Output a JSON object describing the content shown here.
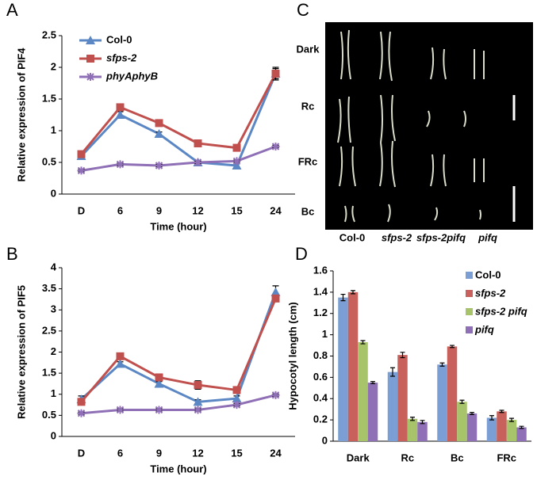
{
  "chart_data": [
    {
      "type": "line",
      "panel": "A",
      "y_label": "Relative expression of PIF4",
      "x_label": "Time (hour)",
      "categories": [
        "D",
        "6",
        "9",
        "12",
        "15",
        "24"
      ],
      "ylim": [
        0,
        2.5
      ],
      "yticks": [
        0,
        0.5,
        1,
        1.5,
        2,
        2.5
      ],
      "legend": "upper left",
      "series": [
        {
          "name": "Col-0",
          "color": "#5b87c5",
          "marker": "triangle",
          "values": [
            0.6,
            1.25,
            0.95,
            0.5,
            0.45,
            1.9
          ],
          "errors": [
            0.04,
            0.05,
            0.03,
            0.03,
            0.03,
            0.08
          ]
        },
        {
          "name": "sfps-2",
          "color": "#c0504d",
          "marker": "square",
          "values": [
            0.63,
            1.37,
            1.12,
            0.8,
            0.73,
            1.9
          ],
          "errors": [
            0.05,
            0.04,
            0.04,
            0.04,
            0.03,
            0.1
          ]
        },
        {
          "name": "phyAphyB",
          "color": "#8f6fb5",
          "marker": "star",
          "values": [
            0.37,
            0.47,
            0.45,
            0.5,
            0.52,
            0.75
          ],
          "errors": [
            0.02,
            0.02,
            0.02,
            0.02,
            0.02,
            0.02
          ]
        }
      ]
    },
    {
      "type": "line",
      "panel": "B",
      "y_label": "Relative expression of PIF5",
      "x_label": "Time (hour)",
      "categories": [
        "D",
        "6",
        "9",
        "12",
        "15",
        "24"
      ],
      "ylim": [
        0,
        4
      ],
      "yticks": [
        0,
        0.5,
        1,
        1.5,
        2,
        2.5,
        3,
        3.5,
        4
      ],
      "series": [
        {
          "name": "Col-0",
          "color": "#5b87c5",
          "marker": "triangle",
          "values": [
            0.88,
            1.72,
            1.25,
            0.82,
            0.9,
            3.42
          ],
          "errors": [
            0.08,
            0.05,
            0.05,
            0.05,
            0.06,
            0.15
          ]
        },
        {
          "name": "sfps-2",
          "color": "#c0504d",
          "marker": "square",
          "values": [
            0.82,
            1.9,
            1.4,
            1.22,
            1.1,
            3.27
          ],
          "errors": [
            0.06,
            0.06,
            0.05,
            0.1,
            0.05,
            0.07
          ]
        },
        {
          "name": "phyAphyB",
          "color": "#8f6fb5",
          "marker": "star",
          "values": [
            0.55,
            0.63,
            0.63,
            0.63,
            0.75,
            0.98
          ],
          "errors": [
            0.03,
            0.03,
            0.03,
            0.03,
            0.03,
            0.03
          ]
        }
      ]
    },
    {
      "type": "bar",
      "panel": "D",
      "y_label": "Hypocotyl length (cm)",
      "categories": [
        "Dark",
        "Rc",
        "Bc",
        "FRc"
      ],
      "ylim": [
        0,
        1.6
      ],
      "yticks": [
        0,
        0.2,
        0.4,
        0.6,
        0.8,
        1,
        1.2,
        1.4,
        1.6
      ],
      "legend": "upper right",
      "series": [
        {
          "name": "Col-0",
          "color": "#7b9fd4",
          "values": [
            1.35,
            0.65,
            0.72,
            0.22
          ],
          "errors": [
            0.03,
            0.04,
            0.015,
            0.02
          ]
        },
        {
          "name": "sfps-2",
          "color": "#c8605c",
          "values": [
            1.4,
            0.81,
            0.89,
            0.28
          ],
          "errors": [
            0.015,
            0.025,
            0.01,
            0.01
          ]
        },
        {
          "name": "sfps-2 pifq",
          "color": "#a8c46a",
          "values": [
            0.93,
            0.21,
            0.37,
            0.2
          ],
          "errors": [
            0.015,
            0.015,
            0.015,
            0.015
          ]
        },
        {
          "name": "pifq",
          "color": "#8f6fb5",
          "values": [
            0.55,
            0.18,
            0.26,
            0.13
          ],
          "errors": [
            0.01,
            0.015,
            0.01,
            0.01
          ]
        }
      ]
    }
  ],
  "photo_panel": {
    "panel": "C",
    "rows": [
      "Dark",
      "Rc",
      "FRc",
      "Bc"
    ],
    "columns": [
      "Col-0",
      "sfps-2",
      "sfps-2pifq",
      "pifq"
    ]
  }
}
